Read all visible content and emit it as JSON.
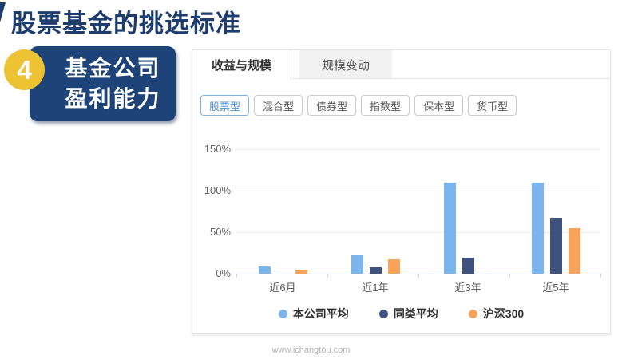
{
  "theme": {
    "title_color": "#1d3d6f",
    "badge_circle": "#edc233",
    "badge_box": "#1e4378",
    "accent_blue": "#4a90d9"
  },
  "page": {
    "title": "股票基金的挑选标准",
    "footer": "www.ichangtou.com"
  },
  "badge": {
    "number": "4",
    "label_line1": "基金公司",
    "label_line2": "盈利能力"
  },
  "panel": {
    "tabs": [
      {
        "label": "收益与规模",
        "active": true
      },
      {
        "label": "规模变动",
        "active": false
      }
    ],
    "filters": [
      {
        "label": "股票型",
        "active": true
      },
      {
        "label": "混合型",
        "active": false
      },
      {
        "label": "债券型",
        "active": false
      },
      {
        "label": "指数型",
        "active": false
      },
      {
        "label": "保本型",
        "active": false
      },
      {
        "label": "货币型",
        "active": false
      }
    ]
  },
  "chart_data": {
    "type": "bar",
    "title": "",
    "xlabel": "",
    "ylabel": "",
    "categories": [
      "近6月",
      "近1年",
      "近3年",
      "近5年"
    ],
    "series": [
      {
        "name": "本公司平均",
        "color": "#7cb5ec",
        "values": [
          9,
          22,
          110,
          110
        ]
      },
      {
        "name": "同类平均",
        "color": "#3f517e",
        "values": [
          null,
          8,
          19,
          67
        ]
      },
      {
        "name": "沪深300",
        "color": "#f7a35c",
        "values": [
          5,
          17,
          null,
          55
        ]
      }
    ],
    "ytick_values": [
      0,
      50,
      100,
      150
    ],
    "ytick_labels": [
      "0%",
      "50%",
      "100%",
      "150%"
    ],
    "ylim": [
      0,
      160
    ],
    "grid": true,
    "legend_position": "bottom"
  }
}
